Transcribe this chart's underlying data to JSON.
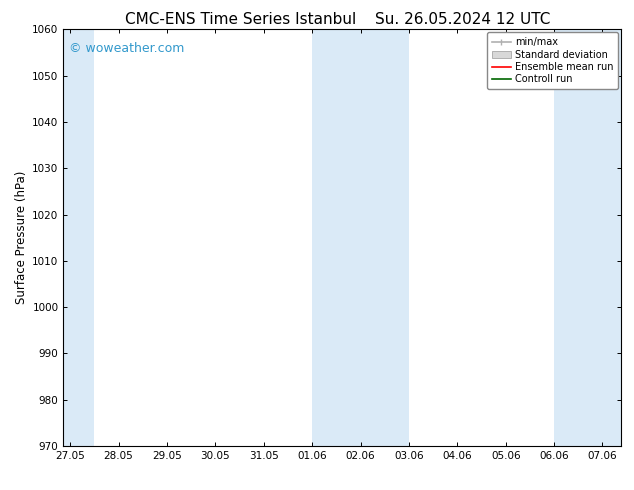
{
  "title_left": "CMC-ENS Time Series Istanbul",
  "title_right": "Su. 26.05.2024 12 UTC",
  "ylabel": "Surface Pressure (hPa)",
  "ylim": [
    970,
    1060
  ],
  "yticks": [
    970,
    980,
    990,
    1000,
    1010,
    1020,
    1030,
    1040,
    1050,
    1060
  ],
  "xlim_start": 0,
  "xlim_end": 41.5,
  "xtick_labels": [
    "27.05",
    "28.05",
    "29.05",
    "30.05",
    "31.05",
    "01.06",
    "02.06",
    "03.06",
    "04.06",
    "05.06",
    "06.06",
    "07.06"
  ],
  "xtick_positions": [
    0.5,
    4.1,
    7.7,
    11.3,
    14.9,
    18.5,
    22.1,
    25.7,
    29.3,
    32.9,
    36.5,
    40.1
  ],
  "shaded_bands": [
    {
      "x_start": 0.0,
      "x_end": 2.3
    },
    {
      "x_start": 18.5,
      "x_end": 25.7
    },
    {
      "x_start": 36.5,
      "x_end": 41.5
    }
  ],
  "shaded_color": "#daeaf7",
  "background_color": "#ffffff",
  "watermark_text": "© woweather.com",
  "watermark_color": "#3399cc",
  "title_fontsize": 11,
  "tick_fontsize": 7.5,
  "ylabel_fontsize": 8.5,
  "legend_fontsize": 7,
  "minmax_color": "#b0b0b0",
  "std_color": "#d8d8d8",
  "ensemble_color": "#ff0000",
  "control_color": "#006600"
}
